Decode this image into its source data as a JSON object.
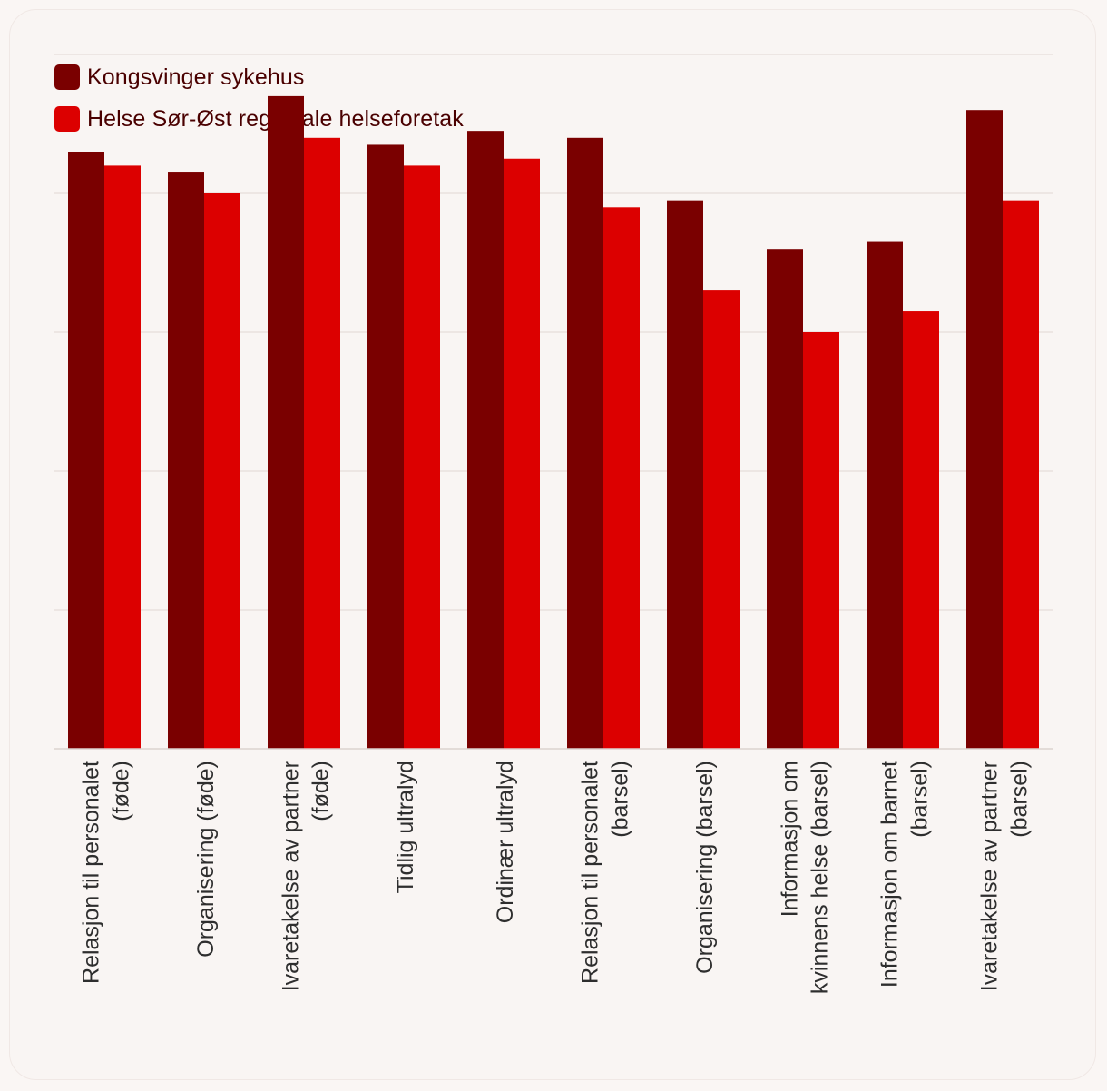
{
  "chart_data": {
    "type": "bar",
    "title": "",
    "xlabel": "",
    "ylabel": "",
    "ylim": [
      0,
      100
    ],
    "grid": true,
    "legend_position": "top-left",
    "categories": [
      [
        "Relasjon til personalet",
        "(føde)"
      ],
      [
        "Organisering (føde)"
      ],
      [
        "Ivaretakelse av partner",
        "(føde)"
      ],
      [
        "Tidlig ultralyd"
      ],
      [
        "Ordinær ultralyd"
      ],
      [
        "Relasjon til personalet",
        "(barsel)"
      ],
      [
        "Organisering (barsel)"
      ],
      [
        "Informasjon om",
        "kvinnens helse (barsel)"
      ],
      [
        "Informasjon om barnet",
        "(barsel)"
      ],
      [
        "Ivaretakelse av partner",
        "(barsel)"
      ]
    ],
    "series": [
      {
        "name": "Kongsvinger sykehus",
        "color": "#7a0000",
        "values": [
          86,
          83,
          94,
          87,
          89,
          88,
          79,
          72,
          73,
          92
        ]
      },
      {
        "name": "Helse Sør-Øst regionale helseforetak",
        "color": "#dc0000",
        "values": [
          84,
          80,
          88,
          84,
          85,
          78,
          66,
          60,
          63,
          79
        ]
      }
    ]
  }
}
